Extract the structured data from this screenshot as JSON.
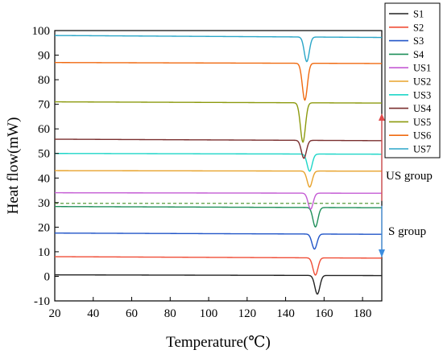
{
  "chart_data": {
    "type": "line",
    "title": "",
    "xlabel": "Temperature(℃)",
    "ylabel": "Heat flow(mW)",
    "xlim": [
      20,
      190
    ],
    "ylim": [
      -10,
      100
    ],
    "xticks": [
      20,
      40,
      60,
      80,
      100,
      120,
      140,
      160,
      180
    ],
    "yticks": [
      -10,
      0,
      10,
      20,
      30,
      40,
      50,
      60,
      70,
      80,
      90,
      100
    ],
    "grid": false,
    "legend_position": "top-right, outside plot area",
    "series": [
      {
        "name": "S1",
        "color": "#222222",
        "baseline": 0.6,
        "end": 0.3,
        "peak_x": 156.5,
        "peak_min": -7.0
      },
      {
        "name": "S2",
        "color": "#f04e37",
        "baseline": 8.0,
        "end": 7.4,
        "peak_x": 155.5,
        "peak_min": 1.0
      },
      {
        "name": "S3",
        "color": "#2155c8",
        "baseline": 17.6,
        "end": 17.1,
        "peak_x": 155.0,
        "peak_min": 11.5
      },
      {
        "name": "S4",
        "color": "#1f8f5a",
        "baseline": 28.4,
        "end": 27.9,
        "peak_x": 155.5,
        "peak_min": 20.5
      },
      {
        "name": "US1",
        "color": "#c45bd4",
        "baseline": 34.0,
        "end": 33.8,
        "peak_x": 153.0,
        "peak_min": 27.5
      },
      {
        "name": "US2",
        "color": "#e8a32c",
        "baseline": 43.0,
        "end": 42.8,
        "peak_x": 152.5,
        "peak_min": 36.5
      },
      {
        "name": "US3",
        "color": "#1ed6c8",
        "baseline": 50.0,
        "end": 49.7,
        "peak_x": 152.5,
        "peak_min": 43.0
      },
      {
        "name": "US4",
        "color": "#7a2f2f",
        "baseline": 55.8,
        "end": 55.2,
        "peak_x": 149.5,
        "peak_min": 48.5
      },
      {
        "name": "US5",
        "color": "#8c9a0e",
        "baseline": 71.0,
        "end": 70.5,
        "peak_x": 149.0,
        "peak_min": 55.0
      },
      {
        "name": "US6",
        "color": "#f06a10",
        "baseline": 87.0,
        "end": 86.6,
        "peak_x": 150.0,
        "peak_min": 72.0
      },
      {
        "name": "US7",
        "color": "#2aa6c8",
        "baseline": 98.0,
        "end": 97.2,
        "peak_x": 151.0,
        "peak_min": 88.0
      }
    ],
    "annotations": {
      "divider_y": 29.7,
      "us_group_label": "US group",
      "s_group_label": "S group",
      "us_arrow_color": "#e0494a",
      "s_arrow_color": "#3b8de0",
      "divider_color": "#5a9c3c"
    }
  }
}
